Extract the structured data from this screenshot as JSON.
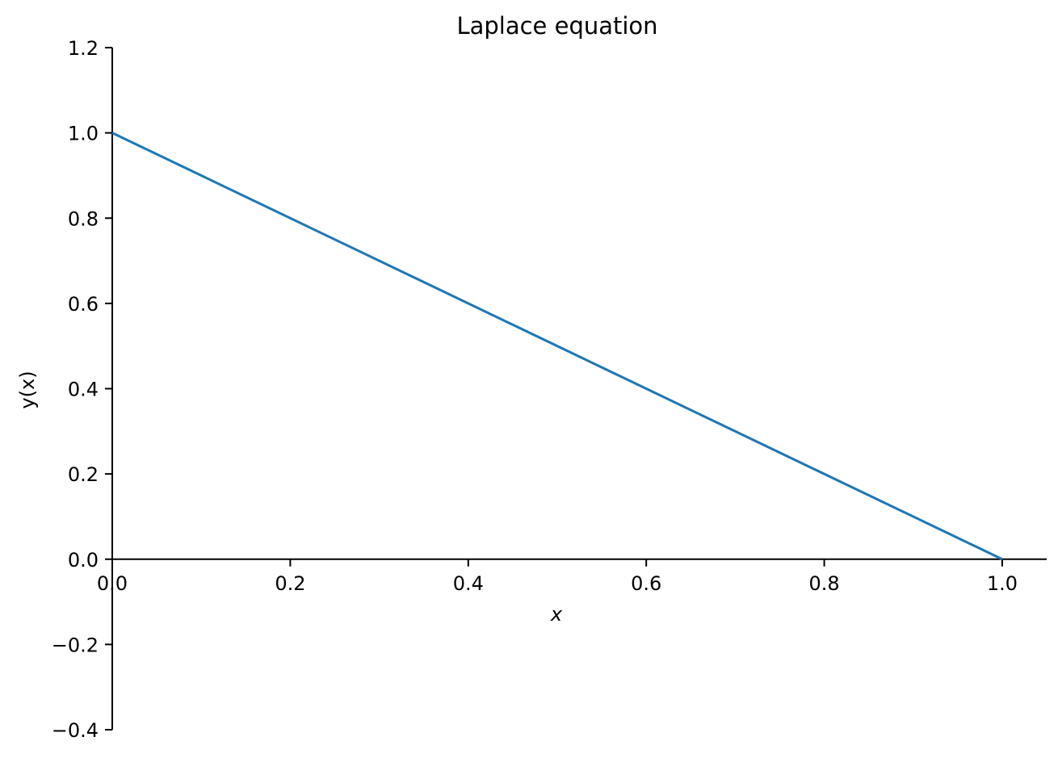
{
  "chart_data": {
    "type": "line",
    "title": "Laplace equation",
    "xlabel": "x",
    "ylabel": "y(x)",
    "xlim": [
      0.0,
      1.05
    ],
    "ylim": [
      -0.4,
      1.2
    ],
    "xticks": [
      0.0,
      0.2,
      0.4,
      0.6,
      0.8,
      1.0
    ],
    "xtick_labels": [
      "0.0",
      "0.2",
      "0.4",
      "0.6",
      "0.8",
      "1.0"
    ],
    "yticks": [
      -0.4,
      -0.2,
      0.0,
      0.2,
      0.4,
      0.6,
      0.8,
      1.0,
      1.2
    ],
    "ytick_labels": [
      "−0.4",
      "−0.2",
      "0.0",
      "0.2",
      "0.4",
      "0.6",
      "0.8",
      "1.0",
      "1.2"
    ],
    "grid": false,
    "series": [
      {
        "color": "#1f77b4",
        "x": [
          0.0,
          1.0
        ],
        "y": [
          1.0,
          0.0
        ]
      }
    ]
  }
}
